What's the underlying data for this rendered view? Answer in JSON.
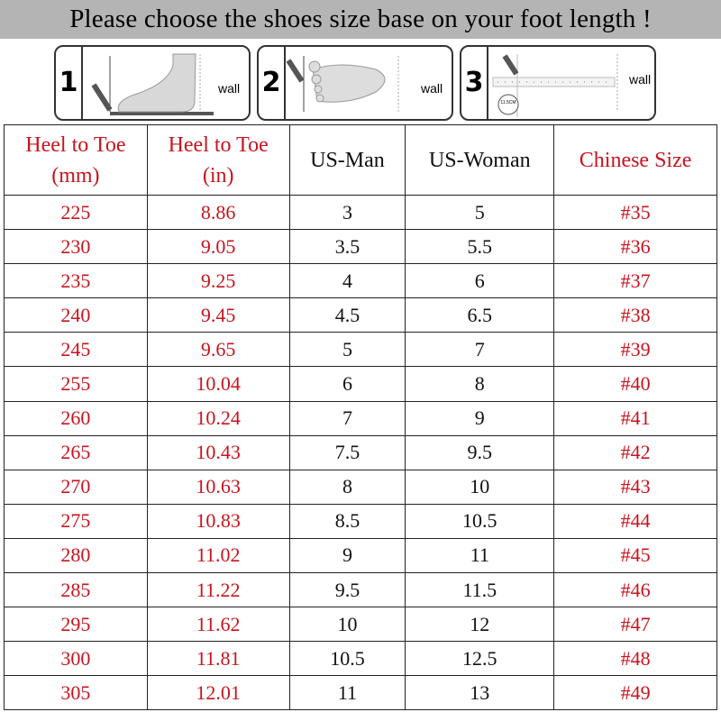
{
  "title": "Please choose the shoes size base on your foot length !",
  "steps": [
    {
      "number": "1",
      "wall_label": "wall"
    },
    {
      "number": "2",
      "wall_label": "wall"
    },
    {
      "number": "3",
      "wall_label": "wall",
      "ruler_label": "11.5CM"
    }
  ],
  "colors": {
    "red": "#c8141e",
    "title_bar": "#b4b4b4"
  },
  "table": {
    "headers": [
      {
        "line1": "Heel to Toe",
        "line2": "(mm)"
      },
      {
        "line1": "Heel to Toe",
        "line2": "(in)"
      },
      {
        "line1": "US-Man",
        "line2": ""
      },
      {
        "line1": "US-Woman",
        "line2": ""
      },
      {
        "line1": "Chinese Size",
        "line2": ""
      }
    ],
    "rows": [
      [
        "225",
        "8.86",
        "3",
        "5",
        "#35"
      ],
      [
        "230",
        "9.05",
        "3.5",
        "5.5",
        "#36"
      ],
      [
        "235",
        "9.25",
        "4",
        "6",
        "#37"
      ],
      [
        "240",
        "9.45",
        "4.5",
        "6.5",
        "#38"
      ],
      [
        "245",
        "9.65",
        "5",
        "7",
        "#39"
      ],
      [
        "255",
        "10.04",
        "6",
        "8",
        "#40"
      ],
      [
        "260",
        "10.24",
        "7",
        "9",
        "#41"
      ],
      [
        "265",
        "10.43",
        "7.5",
        "9.5",
        "#42"
      ],
      [
        "270",
        "10.63",
        "8",
        "10",
        "#43"
      ],
      [
        "275",
        "10.83",
        "8.5",
        "10.5",
        "#44"
      ],
      [
        "280",
        "11.02",
        "9",
        "11",
        "#45"
      ],
      [
        "285",
        "11.22",
        "9.5",
        "11.5",
        "#46"
      ],
      [
        "295",
        "11.62",
        "10",
        "12",
        "#47"
      ],
      [
        "300",
        "11.81",
        "10.5",
        "12.5",
        "#48"
      ],
      [
        "305",
        "12.01",
        "11",
        "13",
        "#49"
      ]
    ]
  }
}
